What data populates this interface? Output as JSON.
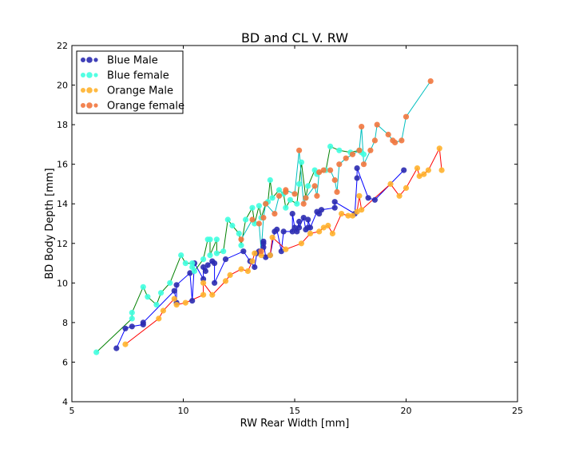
{
  "chart_data": {
    "type": "scatter",
    "title": "BD and CL V. RW",
    "xlabel": "RW Rear Width [mm]",
    "ylabel": "BD Body Depth [mm]",
    "xlim": [
      5,
      25
    ],
    "ylim": [
      4,
      22
    ],
    "xticks": [
      5,
      10,
      15,
      20,
      25
    ],
    "yticks": [
      4,
      6,
      8,
      10,
      12,
      14,
      16,
      18,
      20,
      22
    ],
    "grid": false,
    "legend_position": "top-left",
    "series": [
      {
        "name": "Blue Male",
        "marker_color": "#2b2bb0",
        "line_color": "#0000ff",
        "points": [
          [
            7.0,
            6.7
          ],
          [
            7.4,
            7.7
          ],
          [
            7.7,
            7.8
          ],
          [
            8.2,
            7.9
          ],
          [
            8.2,
            8.0
          ],
          [
            9.6,
            9.6
          ],
          [
            9.7,
            9.0
          ],
          [
            9.7,
            9.9
          ],
          [
            10.3,
            10.5
          ],
          [
            10.4,
            9.1
          ],
          [
            10.5,
            11.0
          ],
          [
            10.9,
            10.2
          ],
          [
            10.9,
            10.8
          ],
          [
            11.0,
            10.6
          ],
          [
            11.1,
            10.9
          ],
          [
            11.3,
            11.1
          ],
          [
            11.4,
            11.0
          ],
          [
            11.4,
            10.0
          ],
          [
            11.9,
            11.2
          ],
          [
            12.7,
            11.6
          ],
          [
            13.0,
            11.1
          ],
          [
            13.2,
            10.8
          ],
          [
            13.3,
            11.5
          ],
          [
            13.4,
            11.6
          ],
          [
            13.6,
            11.8
          ],
          [
            13.6,
            12.0
          ],
          [
            13.6,
            12.1
          ],
          [
            13.7,
            11.3
          ],
          [
            13.9,
            11.4
          ],
          [
            14.1,
            12.6
          ],
          [
            14.2,
            12.7
          ],
          [
            14.4,
            11.6
          ],
          [
            14.5,
            12.6
          ],
          [
            14.9,
            12.6
          ],
          [
            14.9,
            13.5
          ],
          [
            15.0,
            12.8
          ],
          [
            15.1,
            12.6
          ],
          [
            15.2,
            13.1
          ],
          [
            15.2,
            12.8
          ],
          [
            15.4,
            13.3
          ],
          [
            15.5,
            12.7
          ],
          [
            15.6,
            12.8
          ],
          [
            15.6,
            13.2
          ],
          [
            15.7,
            12.8
          ],
          [
            16.0,
            13.6
          ],
          [
            16.1,
            13.5
          ],
          [
            16.2,
            13.7
          ],
          [
            16.8,
            13.8
          ],
          [
            16.8,
            14.1
          ],
          [
            17.7,
            13.5
          ],
          [
            17.8,
            15.3
          ],
          [
            17.8,
            15.8
          ],
          [
            18.3,
            14.3
          ],
          [
            18.6,
            14.2
          ],
          [
            19.9,
            15.7
          ]
        ]
      },
      {
        "name": "Blue female",
        "marker_color": "#40ffe0",
        "line_color": "#008000",
        "points": [
          [
            6.1,
            6.5
          ],
          [
            7.7,
            8.2
          ],
          [
            7.7,
            8.5
          ],
          [
            8.2,
            9.8
          ],
          [
            8.4,
            9.3
          ],
          [
            8.8,
            8.9
          ],
          [
            9.0,
            9.5
          ],
          [
            9.4,
            10.0
          ],
          [
            9.9,
            11.4
          ],
          [
            10.1,
            11.0
          ],
          [
            10.4,
            11.0
          ],
          [
            10.4,
            10.8
          ],
          [
            10.5,
            10.6
          ],
          [
            10.9,
            11.2
          ],
          [
            11.1,
            12.2
          ],
          [
            11.2,
            12.2
          ],
          [
            11.2,
            11.4
          ],
          [
            11.5,
            12.2
          ],
          [
            11.5,
            11.5
          ],
          [
            11.8,
            11.6
          ],
          [
            12.0,
            13.2
          ],
          [
            12.2,
            12.9
          ],
          [
            12.5,
            12.5
          ],
          [
            12.6,
            11.9
          ],
          [
            12.8,
            13.2
          ],
          [
            13.1,
            13.8
          ],
          [
            13.2,
            13.0
          ],
          [
            13.4,
            13.9
          ],
          [
            13.5,
            13.3
          ],
          [
            13.7,
            14.0
          ],
          [
            13.8,
            14.1
          ],
          [
            13.9,
            15.2
          ],
          [
            14.0,
            14.3
          ],
          [
            14.3,
            14.7
          ],
          [
            14.5,
            14.5
          ],
          [
            14.6,
            13.8
          ],
          [
            14.8,
            14.2
          ],
          [
            15.1,
            14.0
          ],
          [
            15.2,
            15.0
          ],
          [
            15.3,
            16.1
          ],
          [
            15.5,
            14.3
          ],
          [
            15.6,
            14.9
          ],
          [
            15.9,
            15.7
          ],
          [
            16.0,
            15.5
          ],
          [
            16.4,
            15.7
          ],
          [
            16.6,
            16.9
          ],
          [
            17.0,
            16.7
          ],
          [
            17.5,
            16.6
          ],
          [
            17.9,
            16.7
          ],
          [
            18.0,
            16.6
          ],
          [
            18.1,
            16.5
          ]
        ]
      },
      {
        "name": "Orange Male",
        "marker_color": "#ffb22e",
        "line_color": "#ff0000",
        "points": [
          [
            7.4,
            6.9
          ],
          [
            8.9,
            8.2
          ],
          [
            9.1,
            8.6
          ],
          [
            9.6,
            9.2
          ],
          [
            9.7,
            8.9
          ],
          [
            10.1,
            9.0
          ],
          [
            10.9,
            9.4
          ],
          [
            10.9,
            10.0
          ],
          [
            11.3,
            9.4
          ],
          [
            11.9,
            10.1
          ],
          [
            12.1,
            10.4
          ],
          [
            12.6,
            10.7
          ],
          [
            12.9,
            10.6
          ],
          [
            13.1,
            11.1
          ],
          [
            13.2,
            11.5
          ],
          [
            13.5,
            11.4
          ],
          [
            13.9,
            11.4
          ],
          [
            14.0,
            12.3
          ],
          [
            14.6,
            11.7
          ],
          [
            15.3,
            12.0
          ],
          [
            15.7,
            12.5
          ],
          [
            16.1,
            12.6
          ],
          [
            16.3,
            12.8
          ],
          [
            16.5,
            12.9
          ],
          [
            16.7,
            12.5
          ],
          [
            17.1,
            13.5
          ],
          [
            17.4,
            13.4
          ],
          [
            17.6,
            13.4
          ],
          [
            17.8,
            13.6
          ],
          [
            17.9,
            14.4
          ],
          [
            18.0,
            13.7
          ],
          [
            19.3,
            15.0
          ],
          [
            19.7,
            14.4
          ],
          [
            20.0,
            14.8
          ],
          [
            20.5,
            15.8
          ],
          [
            20.6,
            15.4
          ],
          [
            20.8,
            15.5
          ],
          [
            21.0,
            15.7
          ],
          [
            21.5,
            16.8
          ],
          [
            21.6,
            15.7
          ]
        ]
      },
      {
        "name": "Orange female",
        "marker_color": "#f2773e",
        "line_color": "#00bfbf",
        "points": [
          [
            12.6,
            12.2
          ],
          [
            13.1,
            13.2
          ],
          [
            13.4,
            13.0
          ],
          [
            13.5,
            11.6
          ],
          [
            13.6,
            13.3
          ],
          [
            13.7,
            14.0
          ],
          [
            14.1,
            13.5
          ],
          [
            14.3,
            14.4
          ],
          [
            14.6,
            14.6
          ],
          [
            14.6,
            14.7
          ],
          [
            15.0,
            14.5
          ],
          [
            15.2,
            16.7
          ],
          [
            15.4,
            14.0
          ],
          [
            15.5,
            14.3
          ],
          [
            15.9,
            14.9
          ],
          [
            16.0,
            14.4
          ],
          [
            16.1,
            15.6
          ],
          [
            16.3,
            15.7
          ],
          [
            16.6,
            15.7
          ],
          [
            16.8,
            15.2
          ],
          [
            16.9,
            14.6
          ],
          [
            17.0,
            16.0
          ],
          [
            17.3,
            16.3
          ],
          [
            17.6,
            16.5
          ],
          [
            17.9,
            16.7
          ],
          [
            18.0,
            17.9
          ],
          [
            18.1,
            16.0
          ],
          [
            18.4,
            16.7
          ],
          [
            18.6,
            17.2
          ],
          [
            18.7,
            18.0
          ],
          [
            19.2,
            17.5
          ],
          [
            19.4,
            17.2
          ],
          [
            19.5,
            17.1
          ],
          [
            19.8,
            17.2
          ],
          [
            20.0,
            18.4
          ],
          [
            21.1,
            20.2
          ]
        ]
      }
    ]
  }
}
